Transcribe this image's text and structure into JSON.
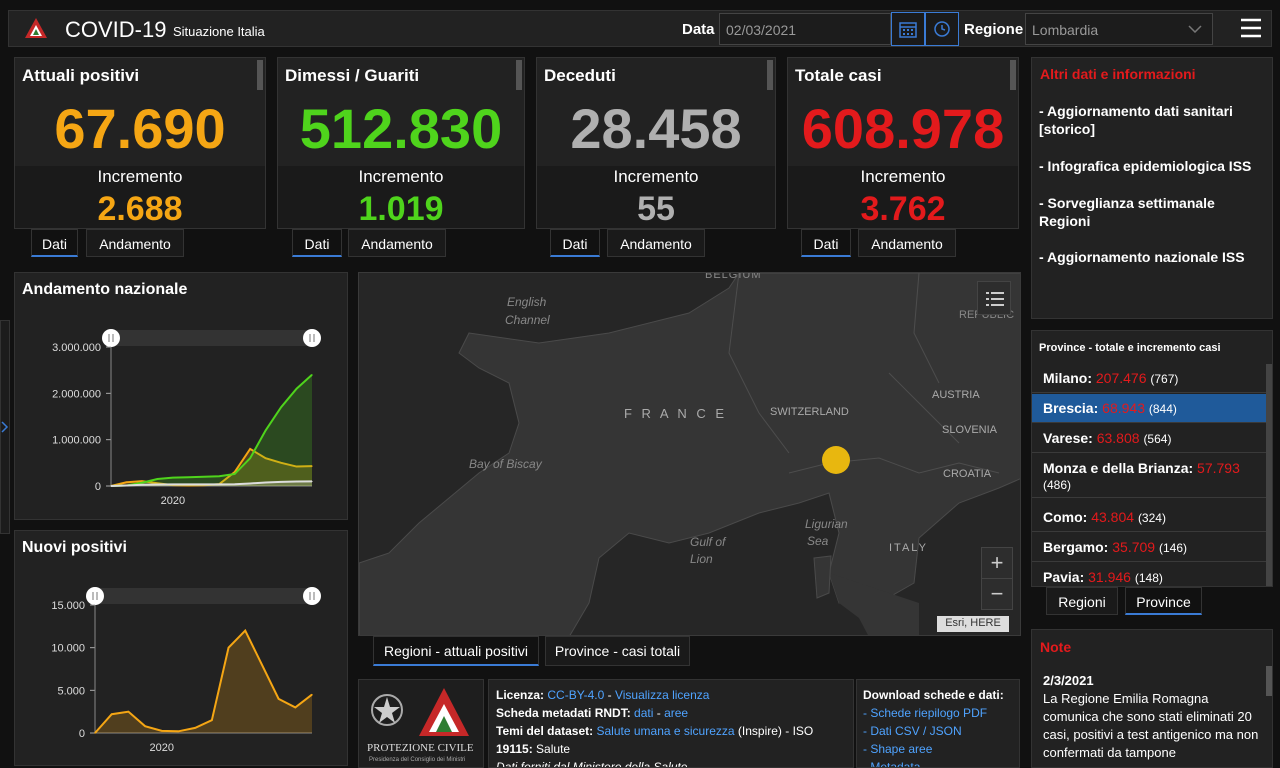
{
  "header": {
    "title": "COVID-19",
    "subtitle": "Situazione Italia",
    "date_label": "Data",
    "date_value": "02/03/2021",
    "region_label": "Regione",
    "region_value": "Lombardia"
  },
  "colors": {
    "orange": "#f5a614",
    "green": "#4fd41c",
    "gray": "#b0b0b0",
    "red": "#e31a1c",
    "accent": "#3a7bd5"
  },
  "cards": [
    {
      "title": "Attuali positivi",
      "value": "67.690",
      "inc_label": "Incremento",
      "inc_value": "2.688",
      "tab1": "Dati",
      "tab2": "Andamento"
    },
    {
      "title": "Dimessi / Guariti",
      "value": "512.830",
      "inc_label": "Incremento",
      "inc_value": "1.019",
      "tab1": "Dati",
      "tab2": "Andamento"
    },
    {
      "title": "Deceduti",
      "value": "28.458",
      "inc_label": "Incremento",
      "inc_value": "55",
      "tab1": "Dati",
      "tab2": "Andamento"
    },
    {
      "title": "Totale casi",
      "value": "608.978",
      "inc_label": "Incremento",
      "inc_value": "3.762",
      "tab1": "Dati",
      "tab2": "Andamento"
    }
  ],
  "info": {
    "heading": "Altri dati e informazioni",
    "items": [
      "- Aggiornamento dati sanitari [storico]",
      "- Infografica epidemiologica ISS",
      "- Sorveglianza settimanale Regioni",
      "- Aggiornamento nazionale ISS"
    ]
  },
  "provinces": {
    "heading": "Province - totale e incremento casi",
    "rows": [
      {
        "name": "Milano:",
        "total": "207.476",
        "inc": "(767)"
      },
      {
        "name": "Brescia:",
        "total": "68.943",
        "inc": "(844)"
      },
      {
        "name": "Varese:",
        "total": "63.808",
        "inc": "(564)"
      },
      {
        "name": "Monza e della Brianza:",
        "total": "57.793",
        "inc": "(486)"
      },
      {
        "name": "Como:",
        "total": "43.804",
        "inc": "(324)"
      },
      {
        "name": "Bergamo:",
        "total": "35.709",
        "inc": "(146)"
      },
      {
        "name": "Pavia:",
        "total": "31.946",
        "inc": "(148)"
      }
    ],
    "tab_regioni": "Regioni",
    "tab_province": "Province"
  },
  "note": {
    "heading": "Note",
    "date": "2/3/2021",
    "text": "La Regione Emilia Romagna comunica che sono stati eliminati 20 casi, positivi a test antigenico ma non confermati da tampone"
  },
  "map": {
    "labels": {
      "belgium": "BELGIUM",
      "channel1": "English",
      "channel2": "Channel",
      "france": "F R A N C E",
      "switzerland": "SWITZERLAND",
      "austria": "AUSTRIA",
      "slovenia": "SLOVENIA",
      "croatia": "CROATIA",
      "biscay": "Bay of Biscay",
      "ligurian1": "Ligurian",
      "ligurian2": "Sea",
      "lion1": "Gulf of",
      "lion2": "Lion",
      "italy": "ITALY",
      "republic": "REPUBLIC"
    },
    "attribution": "Esri, HERE",
    "zoom_in": "+",
    "zoom_out": "−",
    "tab1": "Regioni - attuali positivi",
    "tab2": "Province - casi totali"
  },
  "footer": {
    "logo_text": "PROTEZIONE CIVILE",
    "logo_sub": "Presidenza del Consiglio dei Ministri",
    "lic_label": "Licenza:",
    "lic_link": "CC-BY-4.0",
    "lic_link2": "Visualizza licenza",
    "meta_label": "Scheda metadati RNDT:",
    "meta_link1": "dati",
    "meta_link2": "aree",
    "temi_label": "Temi del dataset:",
    "temi_link": "Salute umana e sicurezza",
    "temi_rest": "(Inspire) - ISO",
    "iso_label": "19115:",
    "iso_val": "Salute",
    "fonte": "Dati forniti dal Ministero della Salute",
    "dl_heading": "Download schede e dati:",
    "dl_items": [
      "- Schede riepilogo PDF",
      "- Dati CSV / JSON",
      "- Shape aree",
      "- Metadata"
    ]
  },
  "chart_data": [
    {
      "type": "line",
      "title": "Andamento nazionale",
      "x": [
        "2020-02",
        "2020-03",
        "2020-04",
        "2020-05",
        "2020-06",
        "2020-07",
        "2020-08",
        "2020-09",
        "2020-10",
        "2020-11",
        "2020-12",
        "2021-01",
        "2021-02",
        "2021-03"
      ],
      "xticks": [
        "2020"
      ],
      "yticks": [
        "3.000.000",
        "2.000.000",
        "1.000.000",
        "0"
      ],
      "ylim": [
        0,
        3000000
      ],
      "series": [
        {
          "values": [
            0,
            80000,
            105000,
            60000,
            20000,
            12000,
            15000,
            40000,
            300000,
            800000,
            600000,
            500000,
            420000,
            430000
          ],
          "color": "#f5a614"
        },
        {
          "values": [
            0,
            10000,
            70000,
            150000,
            180000,
            190000,
            200000,
            210000,
            260000,
            600000,
            1200000,
            1700000,
            2100000,
            2400000
          ],
          "color": "#4fd41c"
        },
        {
          "values": [
            0,
            10000,
            27000,
            33000,
            34500,
            35000,
            35500,
            36000,
            39000,
            55000,
            75000,
            88000,
            97000,
            99000
          ],
          "color": "#dddddd"
        }
      ]
    },
    {
      "type": "area",
      "title": "Nuovi positivi",
      "x": [
        "2020-02",
        "2020-03",
        "2020-04",
        "2020-05",
        "2020-06",
        "2020-07",
        "2020-08",
        "2020-09",
        "2020-10",
        "2020-11",
        "2020-12",
        "2021-01",
        "2021-02",
        "2021-03"
      ],
      "xticks": [
        "2020"
      ],
      "yticks": [
        "15.000",
        "10.000",
        "5.000",
        "0"
      ],
      "ylim": [
        0,
        15000
      ],
      "series": [
        {
          "values": [
            0,
            2200,
            2500,
            800,
            250,
            200,
            600,
            1500,
            10000,
            12000,
            8000,
            4000,
            3000,
            4500
          ],
          "color": "#f5a614"
        }
      ]
    }
  ]
}
